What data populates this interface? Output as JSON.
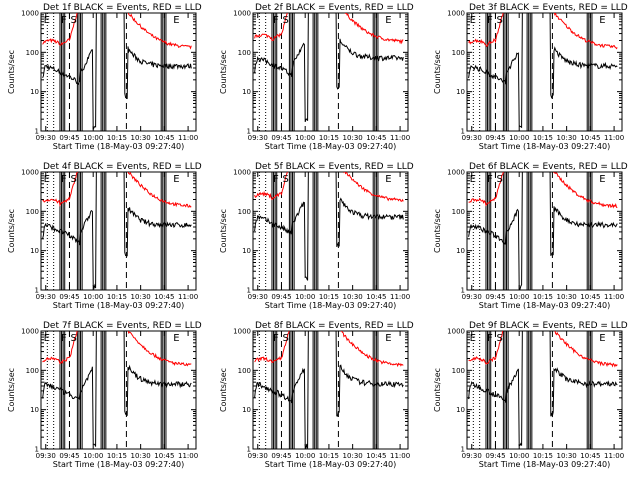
{
  "chart_data": {
    "type": "line",
    "layout": "3x3 grid",
    "y_scale": "log",
    "ylim": [
      1,
      1000
    ],
    "yticks": [
      "1",
      "10",
      "100",
      "1000"
    ],
    "ylabel": "Counts/sec",
    "xlabel": "Start Time (18-May-03 09:27:40)",
    "xticks": [
      "09:30",
      "09:45",
      "10:00",
      "10:15",
      "10:30",
      "10:45",
      "11:00"
    ],
    "xlim_minutes_from_0930": [
      -3,
      95
    ],
    "series_colors": {
      "events": "#000000",
      "lld": "#ff0000"
    },
    "panels": [
      {
        "title": "Det 1f BLACK = Events, RED = LLD",
        "marker_labels": [
          "E",
          "F",
          "S",
          "E"
        ]
      },
      {
        "title": "Det 2f BLACK = Events, RED = LLD",
        "marker_labels": [
          "F",
          "S",
          "E"
        ]
      },
      {
        "title": "Det 3f BLACK = Events, RED = LLD",
        "marker_labels": [
          "E",
          "F",
          "S",
          "E"
        ]
      },
      {
        "title": "Det 4f BLACK = Events, RED = LLD",
        "marker_labels": [
          "E",
          "F",
          "S",
          "E"
        ]
      },
      {
        "title": "Det 5f BLACK = Events, RED = LLD",
        "marker_labels": [
          "F",
          "S",
          "E"
        ]
      },
      {
        "title": "Det 6f BLACK = Events, RED = LLD",
        "marker_labels": [
          "E",
          "F",
          "S",
          "E"
        ]
      },
      {
        "title": "Det 7f BLACK = Events, RED = LLD",
        "marker_labels": [
          "E",
          "F",
          "S",
          "E"
        ]
      },
      {
        "title": "Det 8f BLACK = Events, RED = LLD",
        "marker_labels": [
          "F",
          "S",
          "E"
        ]
      },
      {
        "title": "Det 9f BLACK = Events, RED = LLD",
        "marker_labels": [
          "E",
          "F",
          "S",
          "E"
        ]
      }
    ]
  }
}
